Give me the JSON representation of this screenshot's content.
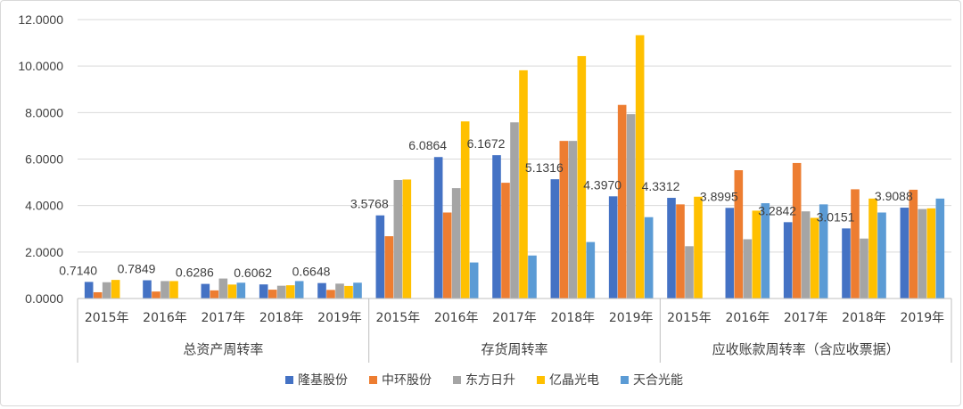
{
  "chart_data": {
    "type": "bar",
    "ylim": [
      0,
      12
    ],
    "y_ticks": [
      "0.0000",
      "2.0000",
      "4.0000",
      "6.0000",
      "8.0000",
      "10.0000",
      "12.0000"
    ],
    "grid": true,
    "legend_position": "bottom",
    "groups": [
      {
        "label": "总资产周转率",
        "categories": [
          "2015年",
          "2016年",
          "2017年",
          "2018年",
          "2019年"
        ]
      },
      {
        "label": "存货周转率",
        "categories": [
          "2015年",
          "2016年",
          "2017年",
          "2018年",
          "2019年"
        ]
      },
      {
        "label": "应收账款周转率（含应收票据）",
        "categories": [
          "2015年",
          "2016年",
          "2017年",
          "2018年",
          "2019年"
        ]
      }
    ],
    "series": [
      {
        "name": "隆基股份",
        "color": "#4472C4",
        "values": [
          0.714,
          0.7849,
          0.6286,
          0.6062,
          0.6648,
          3.5768,
          6.0864,
          6.1672,
          5.1316,
          4.397,
          4.3312,
          3.8995,
          3.2842,
          3.0151,
          3.9088
        ]
      },
      {
        "name": "中环股份",
        "color": "#ED7D31",
        "values": [
          0.27,
          0.3,
          0.35,
          0.38,
          0.37,
          2.68,
          3.7,
          4.98,
          6.78,
          8.33,
          4.05,
          5.52,
          5.83,
          4.7,
          4.68
        ]
      },
      {
        "name": "东方日升",
        "color": "#A5A5A5",
        "values": [
          0.7,
          0.75,
          0.86,
          0.55,
          0.64,
          5.1,
          4.75,
          7.58,
          6.78,
          7.93,
          2.25,
          2.55,
          3.75,
          2.58,
          3.85
        ]
      },
      {
        "name": "亿晶光电",
        "color": "#FFC000",
        "values": [
          0.8,
          0.75,
          0.6,
          0.57,
          0.54,
          5.12,
          7.62,
          9.82,
          10.43,
          11.33,
          4.38,
          3.78,
          3.47,
          4.3,
          3.88
        ]
      },
      {
        "name": "天合光能",
        "color": "#5B9BD5",
        "values": [
          null,
          null,
          0.68,
          0.75,
          0.68,
          null,
          1.55,
          1.85,
          2.43,
          3.5,
          null,
          4.1,
          4.05,
          3.7,
          4.3
        ]
      }
    ],
    "data_labels": {
      "series": 0,
      "texts": [
        "0.7140",
        "0.7849",
        "0.6286",
        "0.6062",
        "0.6648",
        "3.5768",
        "6.0864",
        "6.1672",
        "5.1316",
        "4.3970",
        "4.3312",
        "3.8995",
        "3.2842",
        "3.0151",
        "3.9088"
      ]
    }
  }
}
